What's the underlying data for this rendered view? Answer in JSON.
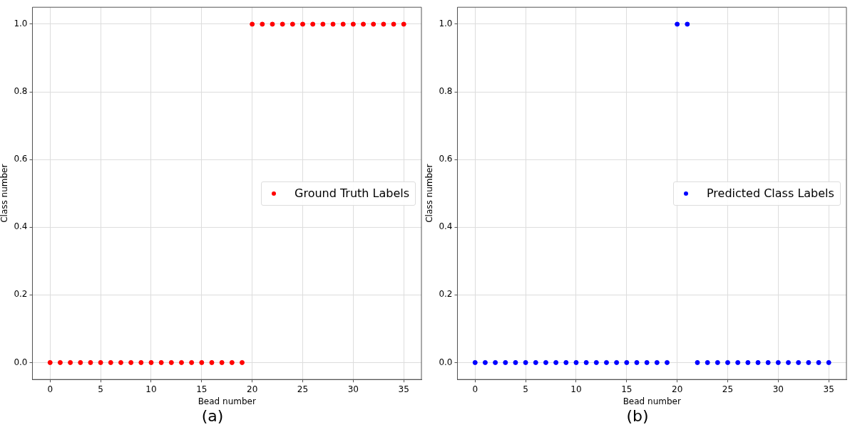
{
  "chart_data": [
    {
      "type": "scatter",
      "xlabel": "Bead number",
      "ylabel": "Class number",
      "annotations": [
        "(a)"
      ],
      "legend": "right",
      "grid": true,
      "marker": "circle",
      "xlim": [
        -1.75,
        36.75
      ],
      "xticks": [
        0,
        5,
        10,
        15,
        20,
        25,
        30,
        35
      ],
      "ylim": [
        -0.05,
        1.05
      ],
      "yticks": [
        {
          "value": 0,
          "label": "0.0"
        },
        {
          "value": 0.2,
          "label": "0.2"
        },
        {
          "value": 0.4,
          "label": "0.4"
        },
        {
          "value": 0.6,
          "label": "0.6"
        },
        {
          "value": 0.8,
          "label": "0.8"
        },
        {
          "value": 1,
          "label": "1.0"
        }
      ],
      "series": [
        {
          "name": "Ground Truth Labels",
          "color": "#ff0000",
          "x": [
            0,
            1,
            2,
            3,
            4,
            5,
            6,
            7,
            8,
            9,
            10,
            11,
            12,
            13,
            14,
            15,
            16,
            17,
            18,
            19,
            20,
            21,
            22,
            23,
            24,
            25,
            26,
            27,
            28,
            29,
            30,
            31,
            32,
            33,
            34,
            35
          ],
          "values": [
            0,
            0,
            0,
            0,
            0,
            0,
            0,
            0,
            0,
            0,
            0,
            0,
            0,
            0,
            0,
            0,
            0,
            0,
            0,
            0,
            1,
            1,
            1,
            1,
            1,
            1,
            1,
            1,
            1,
            1,
            1,
            1,
            1,
            1,
            1,
            1
          ]
        }
      ]
    },
    {
      "type": "scatter",
      "xlabel": "Bead number",
      "ylabel": "Class number",
      "annotations": [
        "(b)"
      ],
      "legend": "right",
      "grid": true,
      "marker": "circle",
      "xlim": [
        -1.75,
        36.75
      ],
      "xticks": [
        0,
        5,
        10,
        15,
        20,
        25,
        30,
        35
      ],
      "ylim": [
        -0.05,
        1.05
      ],
      "yticks": [
        {
          "value": 0,
          "label": "0.0"
        },
        {
          "value": 0.2,
          "label": "0.2"
        },
        {
          "value": 0.4,
          "label": "0.4"
        },
        {
          "value": 0.6,
          "label": "0.6"
        },
        {
          "value": 0.8,
          "label": "0.8"
        },
        {
          "value": 1,
          "label": "1.0"
        }
      ],
      "series": [
        {
          "name": "Predicted Class Labels",
          "color": "#0000ff",
          "x": [
            0,
            1,
            2,
            3,
            4,
            5,
            6,
            7,
            8,
            9,
            10,
            11,
            12,
            13,
            14,
            15,
            16,
            17,
            18,
            19,
            20,
            21,
            22,
            23,
            24,
            25,
            26,
            27,
            28,
            29,
            30,
            31,
            32,
            33,
            34,
            35
          ],
          "values": [
            0,
            0,
            0,
            0,
            0,
            0,
            0,
            0,
            0,
            0,
            0,
            0,
            0,
            0,
            0,
            0,
            0,
            0,
            0,
            0,
            1,
            1,
            0,
            0,
            0,
            0,
            0,
            0,
            0,
            0,
            0,
            0,
            0,
            0,
            0,
            0
          ]
        }
      ]
    }
  ]
}
